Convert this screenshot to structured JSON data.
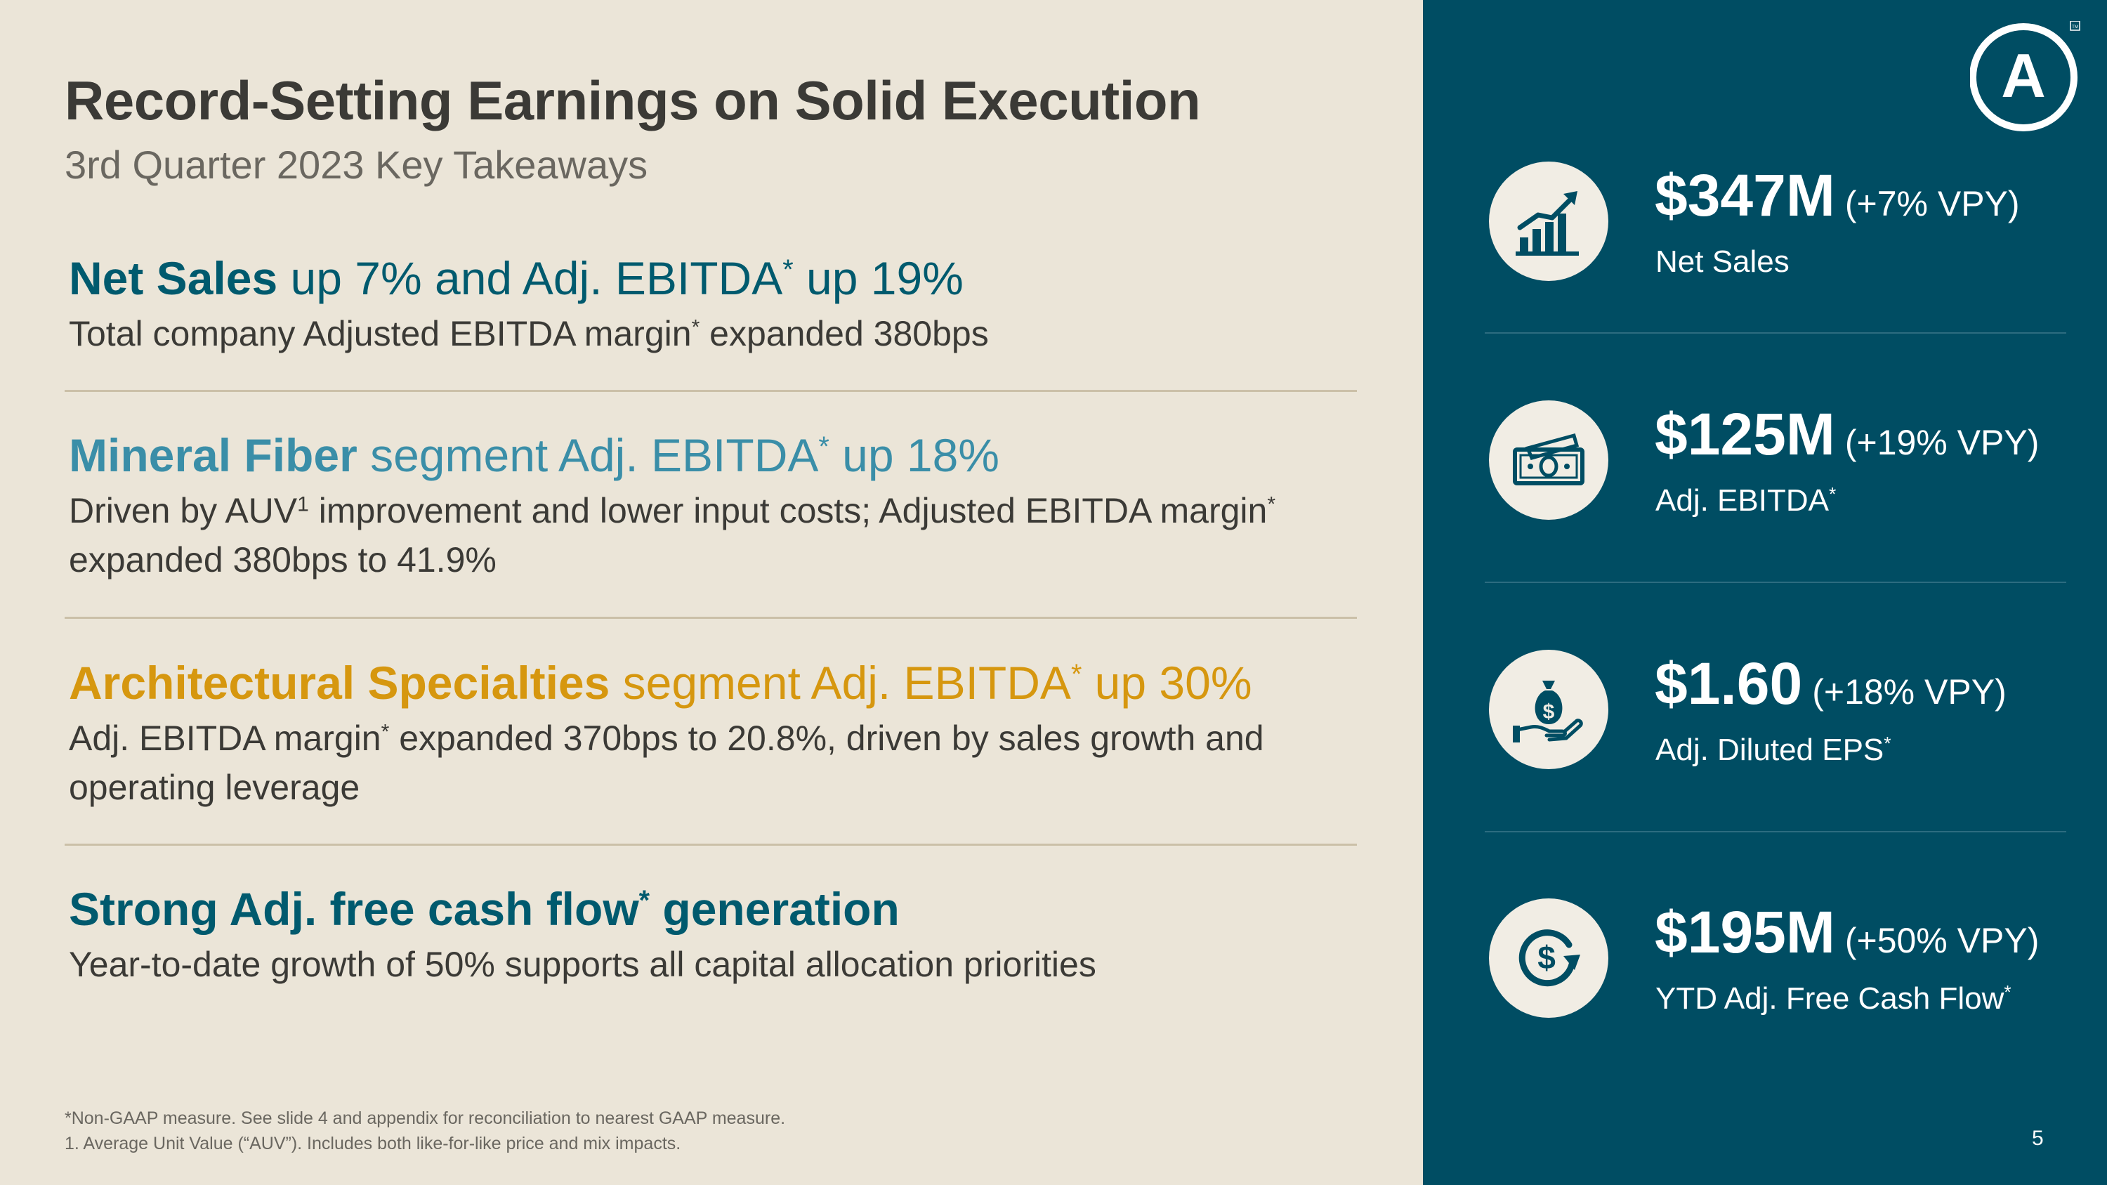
{
  "slide": {
    "title": "Record-Setting Earnings on Solid Execution",
    "subtitle": "3rd Quarter 2023 Key Takeaways",
    "page_number": "5"
  },
  "colors": {
    "navy": "#004d63",
    "teal_heading": "#005a6e",
    "mineral_fiber": "#3a8ea8",
    "architectural": "#d6970f",
    "background": "#ebe5d8"
  },
  "takeaways": [
    {
      "strong": "Net Sales",
      "rest_a": " up 7% and Adj. EBITDA",
      "rest_sup": "*",
      "rest_b": " up 19%",
      "body_a": "Total company Adjusted EBITDA margin",
      "body_sup": "*",
      "body_b": " expanded 380bps"
    },
    {
      "strong": "Mineral Fiber",
      "rest_a": " segment Adj. EBITDA",
      "rest_sup": "*",
      "rest_b": " up 18%",
      "body_a": "Driven by AUV",
      "body_sup": "1",
      "body_b": " improvement and lower input costs; Adjusted EBITDA margin",
      "body_sup2": "*",
      "body_c": " expanded 380bps to 41.9%"
    },
    {
      "strong": "Architectural Specialties",
      "rest_a": " segment Adj. EBITDA",
      "rest_sup": "*",
      "rest_b": " up 30%",
      "body_a": "Adj. EBITDA margin",
      "body_sup": "*",
      "body_b": " expanded 370bps to 20.8%, driven by sales growth and operating leverage"
    },
    {
      "strong": "Strong Adj. free cash flow",
      "strong_sup": "*",
      "strong_b": " generation",
      "body_a": "Year-to-date growth of 50% supports all capital allocation priorities"
    }
  ],
  "footnotes": [
    "*Non-GAAP measure. See slide 4 and appendix for reconciliation to nearest GAAP measure.",
    "1. Average Unit Value (“AUV”). Includes both like-for-like price and mix impacts."
  ],
  "metrics": [
    {
      "value": "$347M",
      "change": "(+7% VPY)",
      "label": "Net Sales",
      "label_sup": "",
      "icon": "growth-chart-icon"
    },
    {
      "value": "$125M",
      "change": "(+19% VPY)",
      "label": "Adj. EBITDA",
      "label_sup": "*",
      "icon": "cash-bills-icon"
    },
    {
      "value": "$1.60",
      "change": "(+18% VPY)",
      "label": "Adj. Diluted EPS",
      "label_sup": "*",
      "icon": "money-bag-hand-icon"
    },
    {
      "value": "$195M",
      "change": "(+50% VPY)",
      "label": "YTD Adj. Free Cash Flow",
      "label_sup": "*",
      "icon": "cash-cycle-icon"
    }
  ],
  "logo": {
    "letter": "A",
    "mark": "TM"
  }
}
